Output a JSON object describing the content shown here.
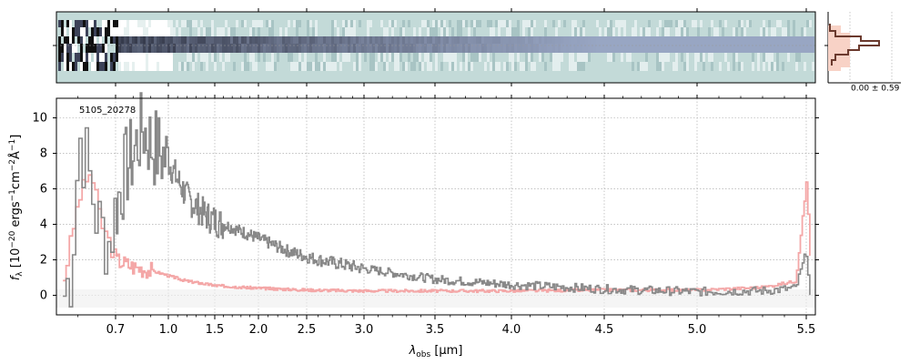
{
  "chart_data": {
    "type": "line",
    "object_label": "5105_20278",
    "ylabel_main": "f",
    "ylabel_sub": "λ",
    "ylabel_rest": " [10",
    "ylabel_exp1": "−20",
    "ylabel_mid": " ergs",
    "ylabel_exp2": "−1",
    "ylabel_mid2": "cm",
    "ylabel_exp3": "−2",
    "ylabel_mid3": "Å",
    "ylabel_exp4": "−1",
    "ylabel_end": "]",
    "xlabel_main": "λ",
    "xlabel_sub": "obs",
    "xlabel_rest": " [μm]",
    "ylim": [
      -1.1,
      11.1
    ],
    "yticks": [
      0,
      2,
      4,
      6,
      8,
      10
    ],
    "xticks": [
      {
        "label": "0.7",
        "x": 0.7
      },
      {
        "label": "1.0",
        "x": 1.0
      },
      {
        "label": "1.5",
        "x": 1.5
      },
      {
        "label": "2.0",
        "x": 2.0
      },
      {
        "label": "2.5",
        "x": 2.5
      },
      {
        "label": "3.0",
        "x": 3.0
      },
      {
        "label": "3.5",
        "x": 3.5
      },
      {
        "label": "4.0",
        "x": 4.0
      },
      {
        "label": "4.5",
        "x": 4.5
      },
      {
        "label": "5.0",
        "x": 5.0
      },
      {
        "label": "5.5",
        "x": 5.5
      }
    ],
    "grid": true,
    "profile_label": "0.00 ± 0.59",
    "colors": {
      "flux": "#888888",
      "model": "#f4a7a7",
      "profile_fill": "#f8d2c6",
      "profile_line": "#6b3a2e",
      "spectrum_bg": "#c3dad8",
      "grid": "#b0b0b0"
    },
    "flux_anchors": [
      [
        0.56,
        0.0
      ],
      [
        0.58,
        1.5
      ],
      [
        0.6,
        9.0
      ],
      [
        0.62,
        7.5
      ],
      [
        0.65,
        4.0
      ],
      [
        0.68,
        3.0
      ],
      [
        0.7,
        5.0
      ],
      [
        0.75,
        7.0
      ],
      [
        0.8,
        8.0
      ],
      [
        0.85,
        9.5
      ],
      [
        0.9,
        8.5
      ],
      [
        0.95,
        8.0
      ],
      [
        1.0,
        7.5
      ],
      [
        1.05,
        7.0
      ],
      [
        1.1,
        6.5
      ],
      [
        1.2,
        5.5
      ],
      [
        1.3,
        5.0
      ],
      [
        1.4,
        4.5
      ],
      [
        1.5,
        4.2
      ],
      [
        1.7,
        3.8
      ],
      [
        2.0,
        3.2
      ],
      [
        2.3,
        2.5
      ],
      [
        2.6,
        2.0
      ],
      [
        3.0,
        1.5
      ],
      [
        3.5,
        0.9
      ],
      [
        4.0,
        0.6
      ],
      [
        4.5,
        0.35
      ],
      [
        5.0,
        0.2
      ],
      [
        5.3,
        0.25
      ],
      [
        5.45,
        0.4
      ],
      [
        5.5,
        2.5
      ],
      [
        5.52,
        -0.8
      ]
    ],
    "model_anchors": [
      [
        0.56,
        1.0
      ],
      [
        0.6,
        5.5
      ],
      [
        0.63,
        7.0
      ],
      [
        0.66,
        4.0
      ],
      [
        0.7,
        2.0
      ],
      [
        0.8,
        1.6
      ],
      [
        0.9,
        1.4
      ],
      [
        1.0,
        1.1
      ],
      [
        1.2,
        0.8
      ],
      [
        1.5,
        0.55
      ],
      [
        2.0,
        0.4
      ],
      [
        2.5,
        0.3
      ],
      [
        3.0,
        0.25
      ],
      [
        4.0,
        0.25
      ],
      [
        4.5,
        0.3
      ],
      [
        5.0,
        0.3
      ],
      [
        5.3,
        0.45
      ],
      [
        5.45,
        0.8
      ],
      [
        5.5,
        6.5
      ],
      [
        5.52,
        1.0
      ]
    ]
  }
}
